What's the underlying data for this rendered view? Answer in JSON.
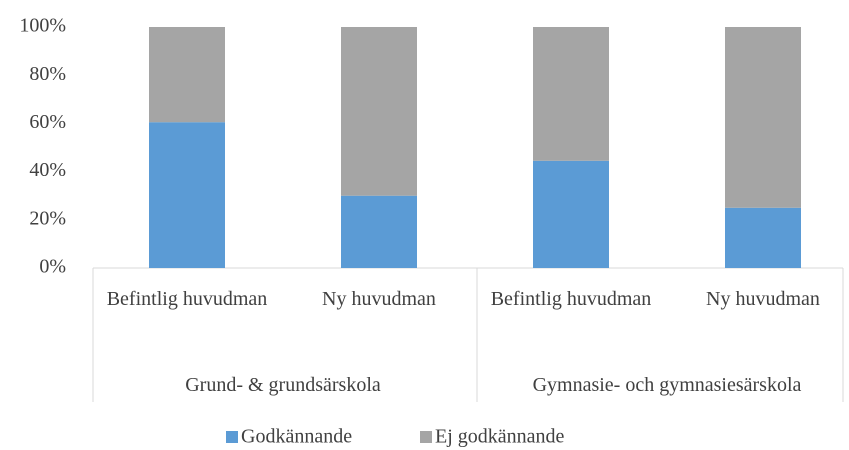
{
  "chart_data": {
    "type": "stacked_bar",
    "groups": [
      {
        "name": "Grund- & grundsärskola",
        "categories": [
          "Befintlig huvudman",
          "Ny huvudman"
        ]
      },
      {
        "name": "Gymnasie- och gymnasiesärskola",
        "categories": [
          "Befintlig huvudman",
          "Ny huvudman"
        ]
      }
    ],
    "series": [
      {
        "name": "Godkännande",
        "color": "#5b9bd5",
        "values": [
          60.5,
          30,
          44.5,
          25
        ]
      },
      {
        "name": "Ej godkännande",
        "color": "#a5a5a5",
        "values": [
          39.5,
          70,
          55.5,
          75
        ]
      }
    ],
    "ylim": [
      0,
      100
    ],
    "yticks": [
      {
        "value": 0,
        "label": "0%"
      },
      {
        "value": 20,
        "label": "20%"
      },
      {
        "value": 40,
        "label": "40%"
      },
      {
        "value": 60,
        "label": "60%"
      },
      {
        "value": 80,
        "label": "80%"
      },
      {
        "value": 100,
        "label": "100%"
      }
    ],
    "grid": false,
    "legend": "bottom"
  }
}
